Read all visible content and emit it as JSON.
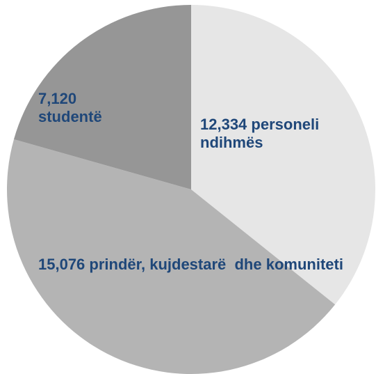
{
  "chart_data": {
    "type": "pie",
    "categories": [
      "personeli ndihmës",
      "prindër, kujdestarë  dhe komuniteti",
      "studentë"
    ],
    "values": [
      12334,
      15076,
      7120
    ],
    "value_labels": [
      "12,334",
      "15,076",
      "7,120"
    ],
    "colors": [
      "#e6e6e6",
      "#b4b4b4",
      "#969696"
    ]
  }
}
